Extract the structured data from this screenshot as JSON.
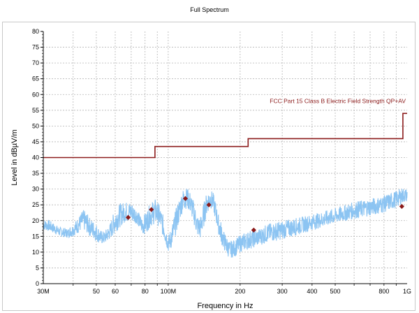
{
  "chart_data": {
    "type": "line",
    "title": "Full Spectrum",
    "xlabel": "Frequency in Hz",
    "ylabel": "Level in dBµV/m",
    "xscale": "log",
    "xlim": [
      30000000,
      1000000000
    ],
    "ylim": [
      0,
      80
    ],
    "grid": true,
    "x_ticks": [
      {
        "value": 30000000,
        "label": "30M"
      },
      {
        "value": 50000000,
        "label": "50"
      },
      {
        "value": 60000000,
        "label": "60"
      },
      {
        "value": 80000000,
        "label": "80"
      },
      {
        "value": 100000000,
        "label": "100M"
      },
      {
        "value": 200000000,
        "label": "200"
      },
      {
        "value": 300000000,
        "label": "300"
      },
      {
        "value": 400000000,
        "label": "400"
      },
      {
        "value": 500000000,
        "label": "500"
      },
      {
        "value": 800000000,
        "label": "800"
      },
      {
        "value": 1000000000,
        "label": "1G"
      }
    ],
    "y_ticks": [
      0,
      5,
      10,
      15,
      20,
      25,
      30,
      35,
      40,
      45,
      50,
      55,
      60,
      65,
      70,
      75,
      80
    ],
    "series": [
      {
        "name": "FCC Part 15 Class B Electric Field Strength QP+AV",
        "kind": "limit-step",
        "color": "#8b1a1a",
        "points": [
          [
            30000000,
            40
          ],
          [
            88000000,
            40
          ],
          [
            88000000,
            43.5
          ],
          [
            216000000,
            43.5
          ],
          [
            216000000,
            46
          ],
          [
            960000000,
            46
          ],
          [
            960000000,
            54
          ],
          [
            1000000000,
            54
          ]
        ]
      },
      {
        "kind": "spectrum",
        "color": "#8cc4f2",
        "envelope": [
          [
            30000000,
            17,
            20.5
          ],
          [
            32000000,
            16.5,
            20
          ],
          [
            35000000,
            15,
            18
          ],
          [
            38000000,
            14.5,
            17.5
          ],
          [
            40000000,
            15,
            19
          ],
          [
            42000000,
            16,
            21
          ],
          [
            44000000,
            17,
            23.5
          ],
          [
            45000000,
            16.5,
            23
          ],
          [
            47000000,
            15,
            21
          ],
          [
            50000000,
            13.5,
            19
          ],
          [
            52000000,
            12.5,
            17
          ],
          [
            54000000,
            12.5,
            16.5
          ],
          [
            57000000,
            14,
            19
          ],
          [
            60000000,
            16,
            24
          ],
          [
            63000000,
            18,
            25.5
          ],
          [
            66000000,
            19.5,
            26
          ],
          [
            70000000,
            19.5,
            26
          ],
          [
            74000000,
            19,
            24
          ],
          [
            76000000,
            17,
            22
          ],
          [
            78000000,
            15.5,
            21
          ],
          [
            81000000,
            16,
            23
          ],
          [
            84000000,
            18,
            25.5
          ],
          [
            88000000,
            19,
            27
          ],
          [
            92000000,
            18,
            25
          ],
          [
            95000000,
            15,
            22
          ],
          [
            98000000,
            12,
            18
          ],
          [
            100000000,
            10,
            15
          ],
          [
            103000000,
            11,
            18
          ],
          [
            107000000,
            15,
            23
          ],
          [
            111000000,
            19,
            27
          ],
          [
            115000000,
            23,
            30
          ],
          [
            120000000,
            24,
            30.5
          ],
          [
            124000000,
            22,
            29
          ],
          [
            128000000,
            19,
            26
          ],
          [
            132000000,
            15,
            22
          ],
          [
            136000000,
            14,
            21
          ],
          [
            140000000,
            17,
            25
          ],
          [
            145000000,
            22,
            29
          ],
          [
            150000000,
            24,
            30
          ],
          [
            154000000,
            23,
            29
          ],
          [
            158000000,
            20,
            26
          ],
          [
            162000000,
            16,
            22
          ],
          [
            166000000,
            13,
            20
          ],
          [
            170000000,
            11,
            17
          ],
          [
            180000000,
            8,
            13.5
          ],
          [
            190000000,
            8.5,
            14
          ],
          [
            200000000,
            10,
            15.5
          ],
          [
            220000000,
            11,
            17
          ],
          [
            240000000,
            12,
            17.5
          ],
          [
            260000000,
            13,
            19
          ],
          [
            300000000,
            14,
            20
          ],
          [
            350000000,
            15.5,
            21
          ],
          [
            400000000,
            17,
            22
          ],
          [
            450000000,
            18,
            23
          ],
          [
            500000000,
            19,
            24
          ],
          [
            600000000,
            20.5,
            26
          ],
          [
            700000000,
            21.5,
            27
          ],
          [
            800000000,
            22.5,
            28
          ],
          [
            900000000,
            24,
            29.5
          ],
          [
            960000000,
            25.5,
            30.5
          ],
          [
            1000000000,
            26,
            30
          ]
        ]
      },
      {
        "kind": "peak-markers",
        "color": "#8b1a1a",
        "points": [
          [
            68000000,
            21
          ],
          [
            85000000,
            23.5
          ],
          [
            118000000,
            27
          ],
          [
            148000000,
            25
          ],
          [
            228000000,
            17
          ],
          [
            950000000,
            24.5
          ]
        ]
      }
    ]
  }
}
